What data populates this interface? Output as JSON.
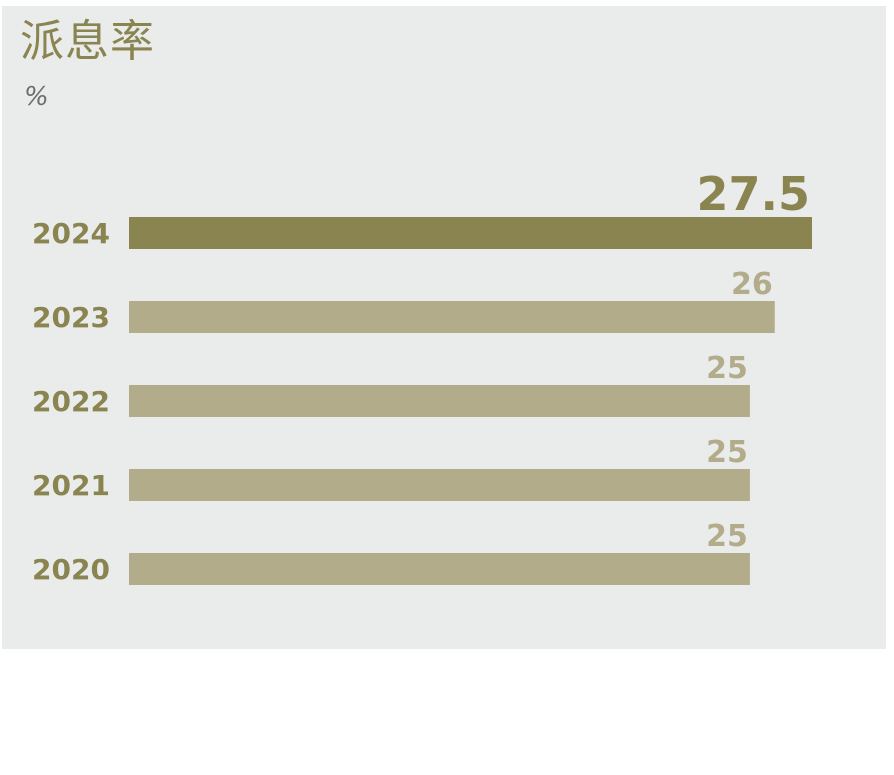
{
  "chart_data": {
    "type": "bar",
    "orientation": "horizontal",
    "title": "派息率",
    "unit": "%",
    "categories": [
      "2024",
      "2023",
      "2022",
      "2021",
      "2020"
    ],
    "values": [
      27.5,
      26,
      25,
      25,
      25
    ],
    "value_labels": [
      "27.5",
      "26",
      "25",
      "25",
      "25"
    ],
    "xlim": [
      0,
      27.5
    ],
    "grid": false,
    "highlight_index": 0
  },
  "colors": {
    "background": "#eaecec",
    "highlight_bar": "#8a8450",
    "bar": "#b3ac8b",
    "highlight_label": "#8a8450",
    "label": "#b3ac8b"
  }
}
